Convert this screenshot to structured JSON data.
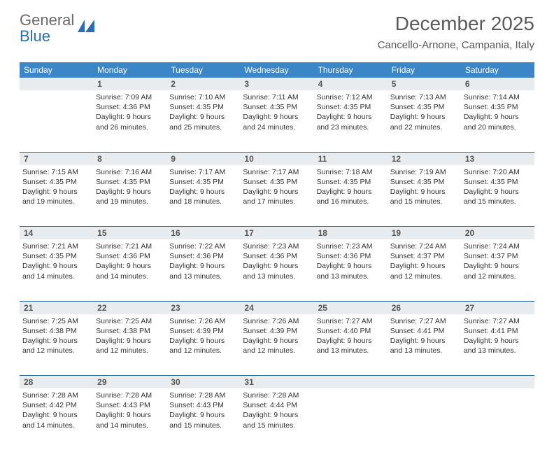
{
  "brand": {
    "general": "General",
    "blue": "Blue"
  },
  "title": "December 2025",
  "location": "Cancello-Arnone, Campania, Italy",
  "colors": {
    "header_bg": "#3b86c7",
    "header_text": "#ffffff",
    "daynum_bg": "#e9ecef",
    "border": "#2d6aa8",
    "logo_gray": "#6a6a6a",
    "logo_blue": "#2a6db5"
  },
  "weekdays": [
    "Sunday",
    "Monday",
    "Tuesday",
    "Wednesday",
    "Thursday",
    "Friday",
    "Saturday"
  ],
  "weeks": [
    [
      null,
      {
        "n": "1",
        "sunrise": "7:09 AM",
        "sunset": "4:36 PM",
        "dl1": "Daylight: 9 hours",
        "dl2": "and 26 minutes."
      },
      {
        "n": "2",
        "sunrise": "7:10 AM",
        "sunset": "4:35 PM",
        "dl1": "Daylight: 9 hours",
        "dl2": "and 25 minutes."
      },
      {
        "n": "3",
        "sunrise": "7:11 AM",
        "sunset": "4:35 PM",
        "dl1": "Daylight: 9 hours",
        "dl2": "and 24 minutes."
      },
      {
        "n": "4",
        "sunrise": "7:12 AM",
        "sunset": "4:35 PM",
        "dl1": "Daylight: 9 hours",
        "dl2": "and 23 minutes."
      },
      {
        "n": "5",
        "sunrise": "7:13 AM",
        "sunset": "4:35 PM",
        "dl1": "Daylight: 9 hours",
        "dl2": "and 22 minutes."
      },
      {
        "n": "6",
        "sunrise": "7:14 AM",
        "sunset": "4:35 PM",
        "dl1": "Daylight: 9 hours",
        "dl2": "and 20 minutes."
      }
    ],
    [
      {
        "n": "7",
        "sunrise": "7:15 AM",
        "sunset": "4:35 PM",
        "dl1": "Daylight: 9 hours",
        "dl2": "and 19 minutes."
      },
      {
        "n": "8",
        "sunrise": "7:16 AM",
        "sunset": "4:35 PM",
        "dl1": "Daylight: 9 hours",
        "dl2": "and 19 minutes."
      },
      {
        "n": "9",
        "sunrise": "7:17 AM",
        "sunset": "4:35 PM",
        "dl1": "Daylight: 9 hours",
        "dl2": "and 18 minutes."
      },
      {
        "n": "10",
        "sunrise": "7:17 AM",
        "sunset": "4:35 PM",
        "dl1": "Daylight: 9 hours",
        "dl2": "and 17 minutes."
      },
      {
        "n": "11",
        "sunrise": "7:18 AM",
        "sunset": "4:35 PM",
        "dl1": "Daylight: 9 hours",
        "dl2": "and 16 minutes."
      },
      {
        "n": "12",
        "sunrise": "7:19 AM",
        "sunset": "4:35 PM",
        "dl1": "Daylight: 9 hours",
        "dl2": "and 15 minutes."
      },
      {
        "n": "13",
        "sunrise": "7:20 AM",
        "sunset": "4:35 PM",
        "dl1": "Daylight: 9 hours",
        "dl2": "and 15 minutes."
      }
    ],
    [
      {
        "n": "14",
        "sunrise": "7:21 AM",
        "sunset": "4:35 PM",
        "dl1": "Daylight: 9 hours",
        "dl2": "and 14 minutes."
      },
      {
        "n": "15",
        "sunrise": "7:21 AM",
        "sunset": "4:36 PM",
        "dl1": "Daylight: 9 hours",
        "dl2": "and 14 minutes."
      },
      {
        "n": "16",
        "sunrise": "7:22 AM",
        "sunset": "4:36 PM",
        "dl1": "Daylight: 9 hours",
        "dl2": "and 13 minutes."
      },
      {
        "n": "17",
        "sunrise": "7:23 AM",
        "sunset": "4:36 PM",
        "dl1": "Daylight: 9 hours",
        "dl2": "and 13 minutes."
      },
      {
        "n": "18",
        "sunrise": "7:23 AM",
        "sunset": "4:36 PM",
        "dl1": "Daylight: 9 hours",
        "dl2": "and 13 minutes."
      },
      {
        "n": "19",
        "sunrise": "7:24 AM",
        "sunset": "4:37 PM",
        "dl1": "Daylight: 9 hours",
        "dl2": "and 12 minutes."
      },
      {
        "n": "20",
        "sunrise": "7:24 AM",
        "sunset": "4:37 PM",
        "dl1": "Daylight: 9 hours",
        "dl2": "and 12 minutes."
      }
    ],
    [
      {
        "n": "21",
        "sunrise": "7:25 AM",
        "sunset": "4:38 PM",
        "dl1": "Daylight: 9 hours",
        "dl2": "and 12 minutes."
      },
      {
        "n": "22",
        "sunrise": "7:25 AM",
        "sunset": "4:38 PM",
        "dl1": "Daylight: 9 hours",
        "dl2": "and 12 minutes."
      },
      {
        "n": "23",
        "sunrise": "7:26 AM",
        "sunset": "4:39 PM",
        "dl1": "Daylight: 9 hours",
        "dl2": "and 12 minutes."
      },
      {
        "n": "24",
        "sunrise": "7:26 AM",
        "sunset": "4:39 PM",
        "dl1": "Daylight: 9 hours",
        "dl2": "and 12 minutes."
      },
      {
        "n": "25",
        "sunrise": "7:27 AM",
        "sunset": "4:40 PM",
        "dl1": "Daylight: 9 hours",
        "dl2": "and 13 minutes."
      },
      {
        "n": "26",
        "sunrise": "7:27 AM",
        "sunset": "4:41 PM",
        "dl1": "Daylight: 9 hours",
        "dl2": "and 13 minutes."
      },
      {
        "n": "27",
        "sunrise": "7:27 AM",
        "sunset": "4:41 PM",
        "dl1": "Daylight: 9 hours",
        "dl2": "and 13 minutes."
      }
    ],
    [
      {
        "n": "28",
        "sunrise": "7:28 AM",
        "sunset": "4:42 PM",
        "dl1": "Daylight: 9 hours",
        "dl2": "and 14 minutes."
      },
      {
        "n": "29",
        "sunrise": "7:28 AM",
        "sunset": "4:43 PM",
        "dl1": "Daylight: 9 hours",
        "dl2": "and 14 minutes."
      },
      {
        "n": "30",
        "sunrise": "7:28 AM",
        "sunset": "4:43 PM",
        "dl1": "Daylight: 9 hours",
        "dl2": "and 15 minutes."
      },
      {
        "n": "31",
        "sunrise": "7:28 AM",
        "sunset": "4:44 PM",
        "dl1": "Daylight: 9 hours",
        "dl2": "and 15 minutes."
      },
      null,
      null,
      null
    ]
  ],
  "labels": {
    "sunrise_prefix": "Sunrise: ",
    "sunset_prefix": "Sunset: "
  }
}
